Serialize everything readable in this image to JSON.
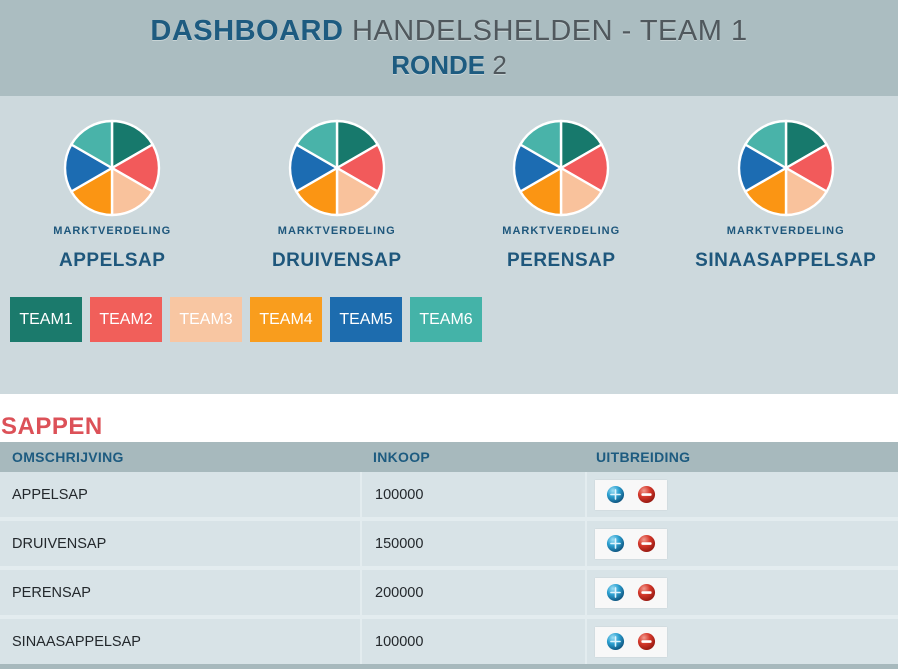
{
  "header": {
    "title_bold": "DASHBOARD",
    "title_rest": "HANDELSHELDEN - TEAM 1",
    "subtitle_bold": "RONDE",
    "subtitle_rest": "2"
  },
  "marktverdeling": {
    "caption": "MARKTVERDELING",
    "chart_data": {
      "type": "pie",
      "title": "MARKTVERDELING",
      "note": "four identical pies, one per product, six equal market shares",
      "categories": [
        "TEAM1",
        "TEAM2",
        "TEAM3",
        "TEAM4",
        "TEAM5",
        "TEAM6"
      ],
      "values": [
        16.67,
        16.67,
        16.67,
        16.67,
        16.67,
        16.67
      ],
      "colors": [
        "#17796c",
        "#f25a5b",
        "#f9c29c",
        "#fb9513",
        "#1c6cb2",
        "#49b3a9"
      ]
    },
    "pies": [
      {
        "name": "APPELSAP"
      },
      {
        "name": "DRUIVENSAP"
      },
      {
        "name": "PERENSAP"
      },
      {
        "name": "SINAASAPPELSAP"
      }
    ]
  },
  "teams": [
    {
      "label": "TEAM1",
      "color": "#1b7a6c"
    },
    {
      "label": "TEAM2",
      "color": "#f15f5a"
    },
    {
      "label": "TEAM3",
      "color": "#f8c6a2"
    },
    {
      "label": "TEAM4",
      "color": "#f99d1d"
    },
    {
      "label": "TEAM5",
      "color": "#1d6cae"
    },
    {
      "label": "TEAM6",
      "color": "#44b3a8"
    }
  ],
  "section": {
    "title": "SAPPEN"
  },
  "table": {
    "headers": [
      "OMSCHRIJVING",
      "INKOOP",
      "UITBREIDING"
    ],
    "rows": [
      {
        "omschrijving": "APPELSAP",
        "inkoop": "100000"
      },
      {
        "omschrijving": "DRUIVENSAP",
        "inkoop": "150000"
      },
      {
        "omschrijving": "PERENSAP",
        "inkoop": "200000"
      },
      {
        "omschrijving": "SINAASAPPELSAP",
        "inkoop": "100000"
      }
    ],
    "icons": {
      "increase": "plus-orb-icon",
      "decrease": "minus-orb-icon"
    }
  },
  "colors": {
    "header_band": "#abbdc1",
    "pie_section_bg": "#cdd9dd",
    "table_header_bg": "#a7b9bd",
    "row_bg": "#d8e3e7",
    "accent_blue_text": "#1d5b80",
    "section_title_red": "#dc5158",
    "plus_icon_blue": "#1a8abc",
    "minus_icon_red": "#c0392b"
  }
}
